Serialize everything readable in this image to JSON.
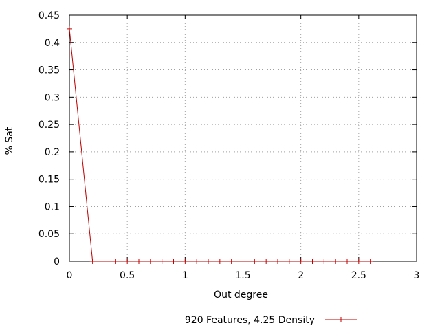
{
  "chart_data": {
    "type": "line",
    "xlabel": "Out degree",
    "ylabel": "% Sat",
    "xlim": [
      0,
      3
    ],
    "ylim": [
      0,
      0.45
    ],
    "xticks": [
      0,
      0.5,
      1,
      1.5,
      2,
      2.5,
      3
    ],
    "xtick_labels": [
      "0",
      "0.5",
      "1",
      "1.5",
      "2",
      "2.5",
      "3"
    ],
    "yticks": [
      0,
      0.05,
      0.1,
      0.15,
      0.2,
      0.25,
      0.3,
      0.35,
      0.4,
      0.45
    ],
    "ytick_labels": [
      "0",
      "0.05",
      "0.1",
      "0.15",
      "0.2",
      "0.25",
      "0.3",
      "0.35",
      "0.4",
      "0.45"
    ],
    "grid": true,
    "legend_position": "bottom-center",
    "series": [
      {
        "name": "920 Features, 4.25 Density",
        "color": "#c00000",
        "marker": "plus",
        "x": [
          0,
          0.2,
          0.3,
          0.4,
          0.5,
          0.6,
          0.7,
          0.8,
          0.9,
          1.0,
          1.1,
          1.2,
          1.3,
          1.4,
          1.5,
          1.6,
          1.7,
          1.8,
          1.9,
          2.0,
          2.1,
          2.2,
          2.3,
          2.4,
          2.5,
          2.6
        ],
        "y": [
          0.425,
          0,
          0,
          0,
          0,
          0,
          0,
          0,
          0,
          0,
          0,
          0,
          0,
          0,
          0,
          0,
          0,
          0,
          0,
          0,
          0,
          0,
          0,
          0,
          0,
          0
        ]
      }
    ]
  }
}
